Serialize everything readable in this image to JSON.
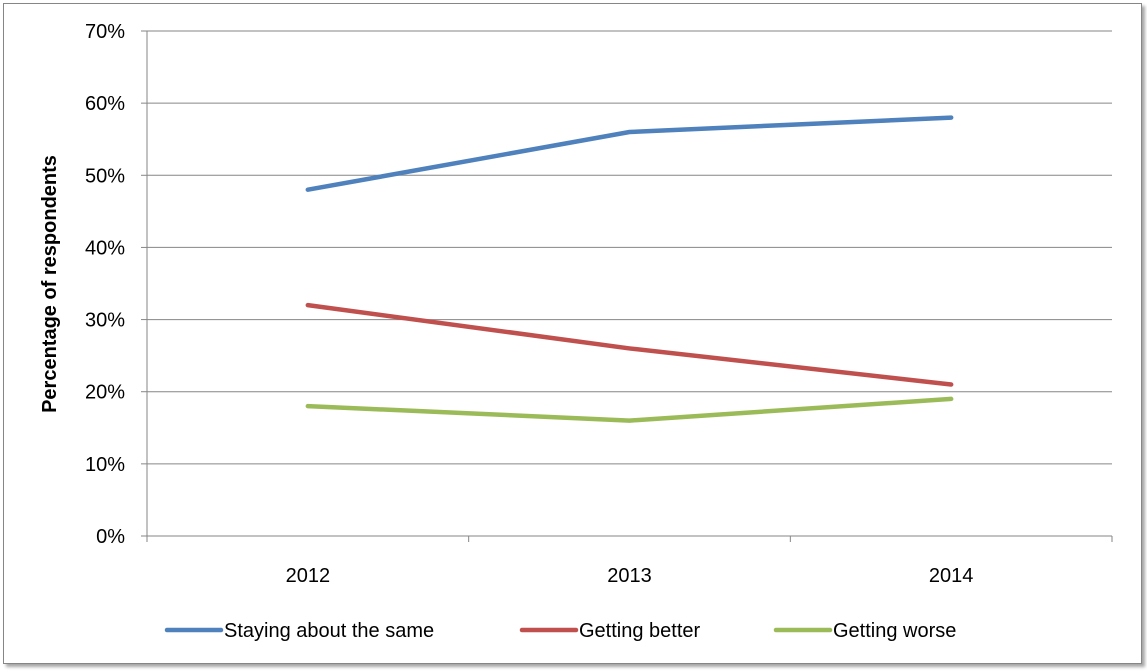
{
  "chart_data": {
    "type": "line",
    "title": "",
    "xlabel": "",
    "ylabel": "Percentage of respondents",
    "categories": [
      "2012",
      "2013",
      "2014"
    ],
    "yticks": [
      "0%",
      "10%",
      "20%",
      "30%",
      "40%",
      "50%",
      "60%",
      "70%"
    ],
    "ylim": [
      0,
      70
    ],
    "grid": true,
    "legend_position": "bottom",
    "series": [
      {
        "name": "Staying about the same",
        "color": "#4F81BD",
        "values": [
          48,
          56,
          58
        ]
      },
      {
        "name": "Getting better",
        "color": "#C0504D",
        "values": [
          32,
          26,
          21
        ]
      },
      {
        "name": "Getting worse",
        "color": "#9BBB59",
        "values": [
          18,
          16,
          19
        ]
      }
    ]
  }
}
